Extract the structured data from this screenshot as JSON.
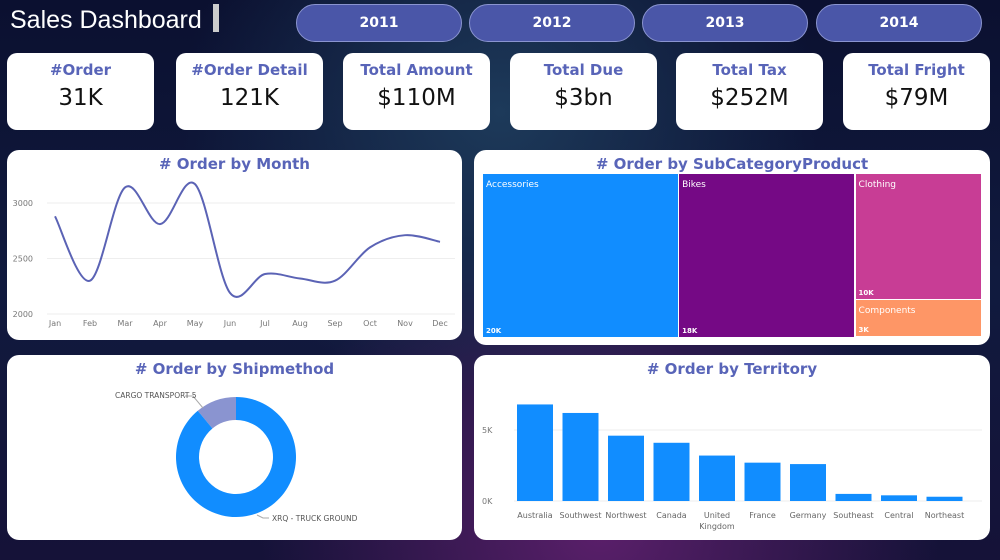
{
  "header": {
    "title": "Sales Dashboard",
    "years": [
      "2011",
      "2012",
      "2013",
      "2014"
    ]
  },
  "kpis": [
    {
      "label": "#Order",
      "value": "31K"
    },
    {
      "label": "#Order Detail",
      "value": "121K"
    },
    {
      "label": "Total Amount",
      "value": "$110M"
    },
    {
      "label": "Total Due",
      "value": "$3bn"
    },
    {
      "label": "Total Tax",
      "value": "$252M"
    },
    {
      "label": "Total Fright",
      "value": "$79M"
    }
  ],
  "chart_data": [
    {
      "type": "line",
      "title": "# Order by Month",
      "categories": [
        "Jan",
        "Feb",
        "Mar",
        "Apr",
        "May",
        "Jun",
        "Jul",
        "Aug",
        "Sep",
        "Oct",
        "Nov",
        "Dec"
      ],
      "values": [
        2880,
        2300,
        3140,
        2810,
        3170,
        2190,
        2360,
        2320,
        2300,
        2600,
        2710,
        2650
      ],
      "ylim": [
        2000,
        3200
      ],
      "yticks": [
        2000,
        2500,
        3000
      ],
      "color": "#5b63b5",
      "grid": true
    },
    {
      "type": "treemap",
      "title": "# Order by SubCategoryProduct",
      "categories": [
        "Accessories",
        "Bikes",
        "Clothing",
        "Components"
      ],
      "values": [
        20000,
        18000,
        10000,
        3000
      ],
      "labels": [
        "20K",
        "18K",
        "10K",
        "3K"
      ],
      "colors": [
        "#118dff",
        "#750985",
        "#c83d95",
        "#fe9666"
      ]
    },
    {
      "type": "pie",
      "subtype": "donut",
      "title": "# Order by Shipmethod",
      "categories": [
        "CARGO TRANSPORT 5",
        "XRQ - TRUCK GROUND"
      ],
      "values": [
        11,
        89
      ],
      "colors": [
        "#8a94d0",
        "#118dff"
      ]
    },
    {
      "type": "bar",
      "title": "# Order by Territory",
      "categories": [
        "Australia",
        "Southwest",
        "Northwest",
        "Canada",
        "United Kingdom",
        "France",
        "Germany",
        "Southeast",
        "Central",
        "Northeast"
      ],
      "values": [
        6800,
        6200,
        4600,
        4100,
        3200,
        2700,
        2600,
        500,
        400,
        300
      ],
      "ylim": [
        0,
        7000
      ],
      "yticks": [
        "0K",
        "5K"
      ],
      "color": "#118dff",
      "grid": true
    }
  ]
}
